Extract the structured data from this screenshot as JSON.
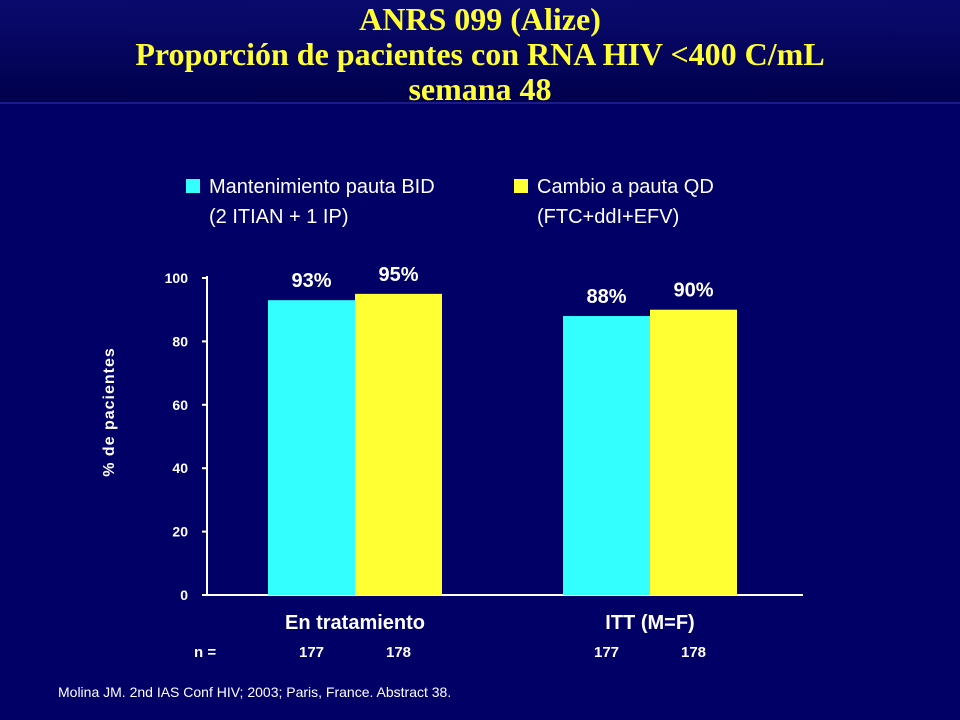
{
  "title": {
    "line1": "ANRS 099 (Alize)",
    "line2": "Proporción  de pacientes con RNA HIV <400 C/mL",
    "line3": "semana  48"
  },
  "legend": [
    {
      "label_line1": "Mantenimiento pauta BID",
      "label_line2": "(2 ITIAN + 1 IP)",
      "color": "#33ffff"
    },
    {
      "label_line1": "Cambio a pauta QD",
      "label_line2": "(FTC+ddI+EFV)",
      "color": "#ffff33"
    }
  ],
  "n_label": "n =",
  "footer": "Molina JM. 2nd IAS Conf HIV; 2003; Paris, France. Abstract 38.",
  "chart_data": {
    "type": "bar",
    "categories": [
      "En tratamiento",
      "ITT (M=F)"
    ],
    "series": [
      {
        "name": "Mantenimiento pauta BID",
        "values": [
          93,
          88
        ],
        "labels": [
          "93%",
          "88%"
        ],
        "n": [
          "177",
          "177"
        ],
        "color": "#33ffff"
      },
      {
        "name": "Cambio a pauta QD",
        "values": [
          95,
          90
        ],
        "labels": [
          "95%",
          "90%"
        ],
        "n": [
          "178",
          "178"
        ],
        "color": "#ffff33"
      }
    ],
    "ylabel": "% de pacientes",
    "yticks": [
      0,
      20,
      40,
      60,
      80,
      100
    ],
    "ylim": [
      0,
      100
    ],
    "grid": false,
    "legend_position": "top"
  }
}
